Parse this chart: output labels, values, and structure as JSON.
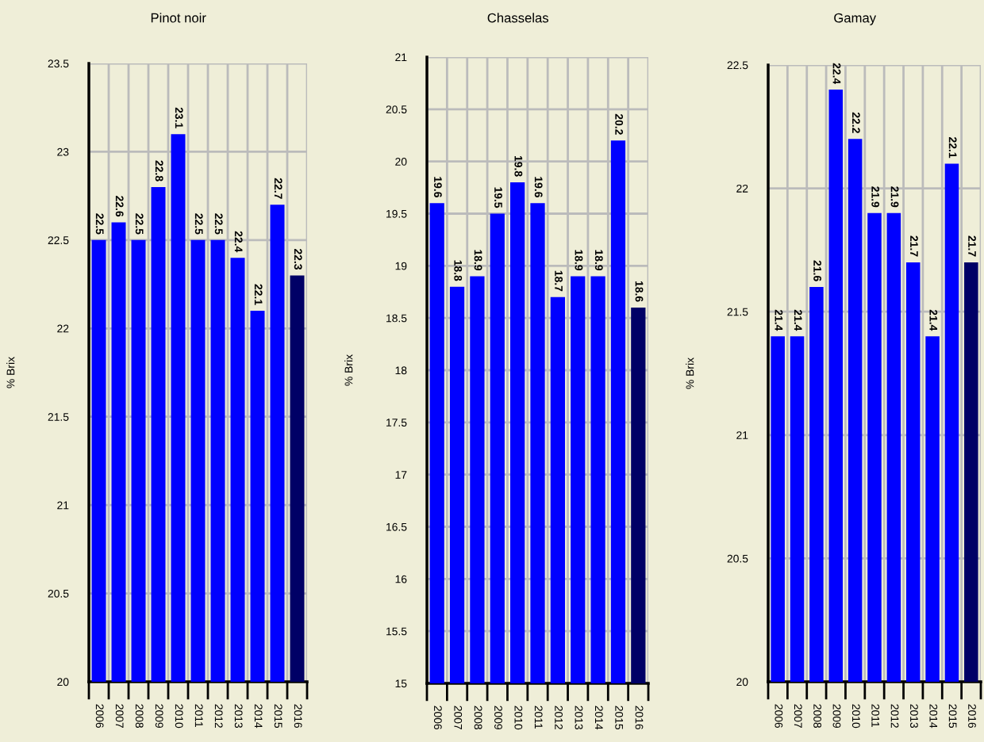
{
  "chart_data": [
    {
      "type": "bar",
      "title": "Pinot noir",
      "ylabel": "% Brix",
      "categories": [
        "2006",
        "2007",
        "2008",
        "2009",
        "2010",
        "2011",
        "2012",
        "2013",
        "2014",
        "2015",
        "2016"
      ],
      "values": [
        22.5,
        22.6,
        22.5,
        22.8,
        23.1,
        22.5,
        22.5,
        22.4,
        22.1,
        22.7,
        22.3
      ],
      "colors": [
        "#0000ff",
        "#0000ff",
        "#0000ff",
        "#0000ff",
        "#0000ff",
        "#0000ff",
        "#0000ff",
        "#0000ff",
        "#0000ff",
        "#0000ff",
        "#000066"
      ],
      "ylim": [
        20,
        23.5
      ],
      "yticks": [
        20,
        20.5,
        21,
        21.5,
        22,
        22.5,
        23,
        23.5
      ],
      "grid": true,
      "data_labels": true
    },
    {
      "type": "bar",
      "title": "Chasselas",
      "ylabel": "% Brix",
      "categories": [
        "2006",
        "2007",
        "2008",
        "2009",
        "2010",
        "2011",
        "2012",
        "2013",
        "2014",
        "2015",
        "2016"
      ],
      "values": [
        19.6,
        18.8,
        18.9,
        19.5,
        19.8,
        19.6,
        18.7,
        18.9,
        18.9,
        20.2,
        18.6
      ],
      "colors": [
        "#0000ff",
        "#0000ff",
        "#0000ff",
        "#0000ff",
        "#0000ff",
        "#0000ff",
        "#0000ff",
        "#0000ff",
        "#0000ff",
        "#0000ff",
        "#000066"
      ],
      "ylim": [
        15,
        21
      ],
      "yticks": [
        15,
        15.5,
        16,
        16.5,
        17,
        17.5,
        18,
        18.5,
        19,
        19.5,
        20,
        20.5,
        21
      ],
      "grid": true,
      "data_labels": true
    },
    {
      "type": "bar",
      "title": "Gamay",
      "ylabel": "% Brix",
      "categories": [
        "2006",
        "2007",
        "2008",
        "2009",
        "2010",
        "2011",
        "2012",
        "2013",
        "2014",
        "2015",
        "2016"
      ],
      "values": [
        21.4,
        21.4,
        21.6,
        22.4,
        22.2,
        21.9,
        21.9,
        21.7,
        21.4,
        22.1,
        21.7
      ],
      "colors": [
        "#0000ff",
        "#0000ff",
        "#0000ff",
        "#0000ff",
        "#0000ff",
        "#0000ff",
        "#0000ff",
        "#0000ff",
        "#0000ff",
        "#0000ff",
        "#000066"
      ],
      "ylim": [
        20,
        22.5
      ],
      "yticks": [
        20,
        20.5,
        21,
        21.5,
        22,
        22.5
      ],
      "grid": true,
      "data_labels": true
    }
  ]
}
